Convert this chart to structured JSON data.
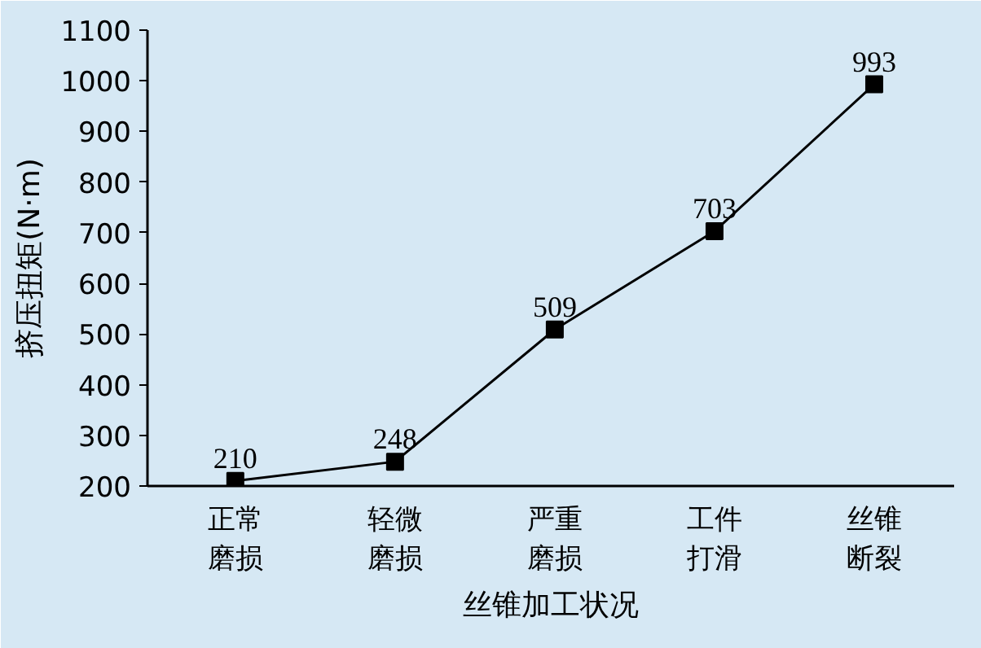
{
  "chart_data": {
    "type": "line",
    "xlabel": "丝锥加工状况",
    "ylabel": "挤压扭矩(N·m)",
    "categories": [
      "正常磨损",
      "轻微磨损",
      "严重磨损",
      "工件打滑",
      "丝锥断裂"
    ],
    "series": [
      {
        "color": "#000000",
        "values": [
          210,
          248,
          509,
          703,
          993
        ]
      }
    ],
    "ylim": [
      200,
      1100
    ],
    "yticks": [
      200,
      300,
      400,
      500,
      600,
      700,
      800,
      900,
      1000,
      1100
    ],
    "data_labels": true,
    "marker": "square",
    "line_style": "solid",
    "grid": false
  }
}
